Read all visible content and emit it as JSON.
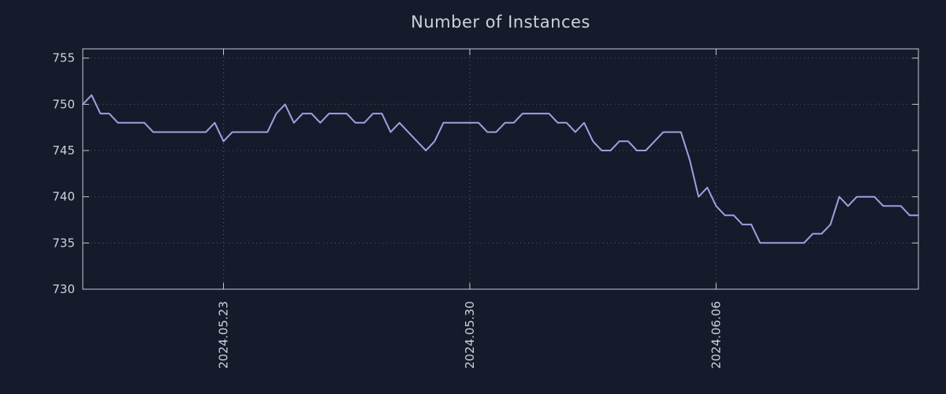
{
  "title": "Number of Instances",
  "colors": {
    "background": "#161b2c",
    "line": "#a0a0e0",
    "axis": "#c4c9d4",
    "grid": "#9aa2b5",
    "text": "#ccd2dd"
  },
  "chart_data": {
    "type": "line",
    "title": "Number of Instances",
    "xlabel": "",
    "ylabel": "",
    "ylim": [
      730,
      756
    ],
    "yticks": [
      730,
      735,
      740,
      745,
      750,
      755
    ],
    "xticks": [
      {
        "index": 16,
        "label": "2024.05.23"
      },
      {
        "index": 44,
        "label": "2024.05.30"
      },
      {
        "index": 72,
        "label": "2024.06.06"
      }
    ],
    "grid": true,
    "legend_position": "none",
    "series": [
      {
        "name": "instances",
        "values": [
          750,
          751,
          749,
          749,
          748,
          748,
          748,
          748,
          747,
          747,
          747,
          747,
          747,
          747,
          747,
          748,
          746,
          747,
          747,
          747,
          747,
          747,
          749,
          750,
          748,
          749,
          749,
          748,
          749,
          749,
          749,
          748,
          748,
          749,
          749,
          747,
          748,
          747,
          746,
          745,
          746,
          748,
          748,
          748,
          748,
          748,
          747,
          747,
          748,
          748,
          749,
          749,
          749,
          749,
          748,
          748,
          747,
          748,
          746,
          745,
          745,
          746,
          746,
          745,
          745,
          746,
          747,
          747,
          747,
          744,
          740,
          741,
          739,
          738,
          738,
          737,
          737,
          735,
          735,
          735,
          735,
          735,
          735,
          736,
          736,
          737,
          740,
          739,
          740,
          740,
          740,
          739,
          739,
          739,
          738,
          738
        ]
      }
    ]
  }
}
